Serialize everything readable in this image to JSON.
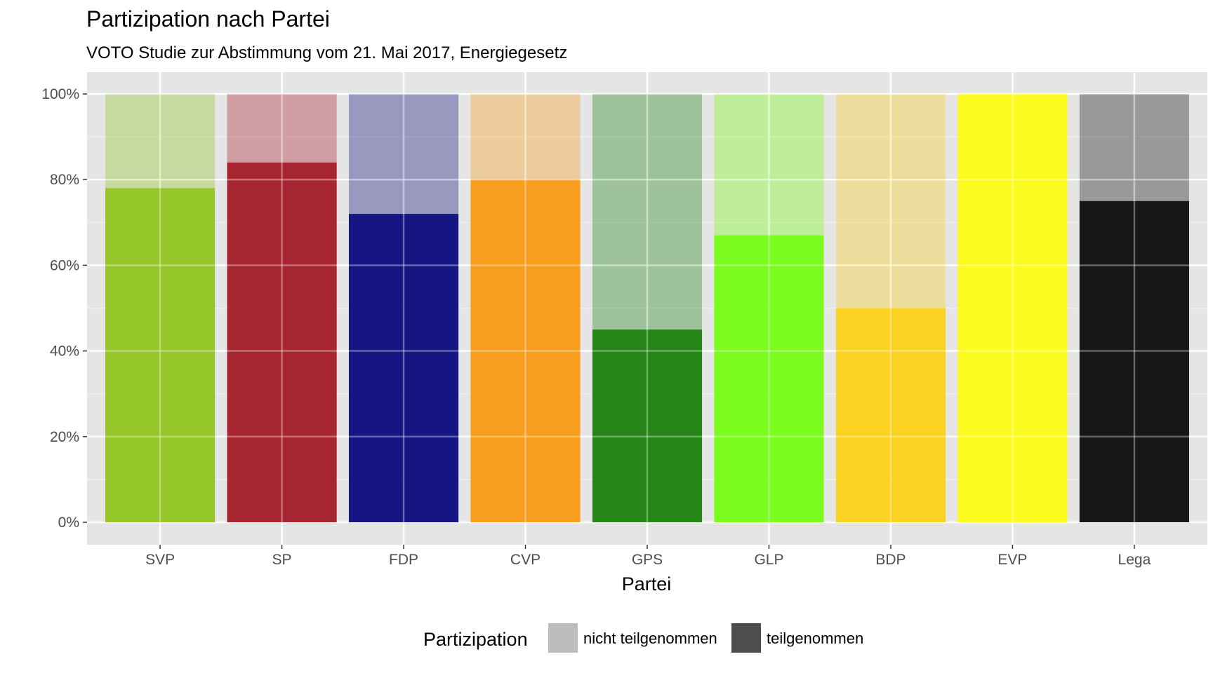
{
  "chart_data": {
    "type": "bar",
    "stacked": true,
    "title": "Partizipation nach Partei",
    "subtitle": "VOTO Studie zur Abstimmung vom 21. Mai 2017, Energiegesetz",
    "xlabel": "Partei",
    "ylabel": "",
    "ylim": [
      0,
      100
    ],
    "y_ticks": [
      "0%",
      "20%",
      "40%",
      "60%",
      "80%",
      "100%"
    ],
    "y_tick_values": [
      0,
      20,
      40,
      60,
      80,
      100
    ],
    "categories": [
      "SVP",
      "SP",
      "FDP",
      "CVP",
      "GPS",
      "GLP",
      "BDP",
      "EVP",
      "Lega"
    ],
    "series": [
      {
        "name": "teilgenommen",
        "values": [
          78,
          84,
          72,
          80,
          45,
          67,
          50,
          100,
          75
        ]
      },
      {
        "name": "nicht teilgenommen",
        "values": [
          22,
          16,
          28,
          20,
          55,
          33,
          50,
          0,
          25
        ]
      }
    ],
    "party_colors": [
      "#8fc31f",
      "#a21a26",
      "#0b0b7c",
      "#f99a14",
      "#1a800c",
      "#76fc14",
      "#fcd116",
      "#fcfc14",
      "#0c0c0c"
    ],
    "panel_background": "#e5e5e5",
    "grid": true,
    "legend": {
      "title": "Partizipation",
      "position": "bottom",
      "items": [
        {
          "label": "nicht teilgenommen",
          "color": "#bdbdbd"
        },
        {
          "label": "teilgenommen",
          "color": "#4d4d4d"
        }
      ]
    }
  }
}
